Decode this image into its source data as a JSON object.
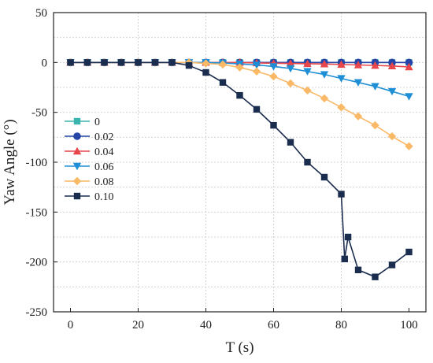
{
  "chart_data": {
    "type": "line",
    "xlabel": "T (s)",
    "ylabel": "Yaw Angle (°)",
    "xlim": [
      -5,
      105
    ],
    "ylim": [
      -250,
      50
    ],
    "xticks": [
      0,
      20,
      40,
      60,
      80,
      100
    ],
    "yticks": [
      50,
      0,
      -50,
      -100,
      -150,
      -200,
      -250
    ],
    "xtick_labels": [
      "0",
      "20",
      "40",
      "60",
      "80",
      "100"
    ],
    "ytick_labels": [
      "50",
      "0",
      "-50",
      "-100",
      "-150",
      "-200",
      "-250"
    ],
    "grid": true,
    "legend_position": "left-middle",
    "series": [
      {
        "name": "0",
        "color": "#3cb4ae",
        "marker": "square",
        "x": [
          0,
          5,
          10,
          15,
          20,
          25,
          30,
          35,
          40,
          45,
          50,
          55,
          60,
          65,
          70,
          75,
          80,
          85,
          90,
          95,
          100
        ],
        "y": [
          0,
          0,
          0,
          0,
          0,
          0,
          0,
          0,
          0,
          0,
          0,
          0,
          0,
          0,
          0,
          0,
          0,
          0,
          0,
          0,
          0
        ]
      },
      {
        "name": "0.02",
        "color": "#2546a8",
        "marker": "circle",
        "x": [
          0,
          5,
          10,
          15,
          20,
          25,
          30,
          35,
          40,
          45,
          50,
          55,
          60,
          65,
          70,
          75,
          80,
          85,
          90,
          95,
          100
        ],
        "y": [
          0,
          0,
          0,
          0,
          0,
          0,
          0,
          0,
          0,
          0,
          0,
          0,
          0,
          0,
          0,
          0,
          0,
          0,
          0,
          0,
          0
        ]
      },
      {
        "name": "0.04",
        "color": "#e8464a",
        "marker": "triangle-up",
        "x": [
          0,
          5,
          10,
          15,
          20,
          25,
          30,
          35,
          40,
          45,
          50,
          55,
          60,
          65,
          70,
          75,
          80,
          85,
          90,
          95,
          100
        ],
        "y": [
          0,
          0,
          0,
          0,
          0,
          0,
          0,
          0,
          0,
          0,
          0,
          -0.5,
          -0.8,
          -1,
          -1.3,
          -1.6,
          -2,
          -2.5,
          -3,
          -3.5,
          -4.5
        ]
      },
      {
        "name": "0.06",
        "color": "#1e8fd6",
        "marker": "triangle-down",
        "x": [
          0,
          5,
          10,
          15,
          20,
          25,
          30,
          35,
          40,
          45,
          50,
          55,
          60,
          65,
          70,
          75,
          80,
          85,
          90,
          95,
          100
        ],
        "y": [
          0,
          0,
          0,
          0,
          0,
          0,
          0,
          0,
          0,
          -0.5,
          -1.5,
          -2.5,
          -4,
          -6,
          -9,
          -12,
          -16,
          -20,
          -24,
          -29,
          -34
        ]
      },
      {
        "name": "0.08",
        "color": "#f9b967",
        "marker": "diamond",
        "x": [
          0,
          5,
          10,
          15,
          20,
          25,
          30,
          35,
          40,
          45,
          50,
          55,
          60,
          65,
          70,
          75,
          80,
          85,
          90,
          95,
          100
        ],
        "y": [
          0,
          0,
          0,
          0,
          0,
          0,
          0,
          0,
          -1,
          -2,
          -5,
          -9,
          -14,
          -21,
          -28,
          -36,
          -45,
          -54,
          -63,
          -74,
          -84
        ]
      },
      {
        "name": "0.10",
        "color": "#1b2d4f",
        "marker": "square",
        "x": [
          0,
          5,
          10,
          15,
          20,
          25,
          30,
          35,
          40,
          45,
          50,
          55,
          60,
          65,
          70,
          75,
          80,
          81,
          82,
          85,
          90,
          95,
          100
        ],
        "y": [
          0,
          0,
          0,
          0,
          0,
          0,
          0,
          -3,
          -10,
          -20,
          -33,
          -47,
          -63,
          -80,
          -100,
          -115,
          -132,
          -197,
          -175,
          -208,
          -215,
          -203,
          -190
        ]
      }
    ]
  }
}
